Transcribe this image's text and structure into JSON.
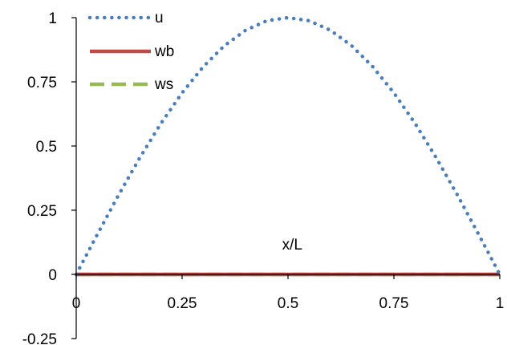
{
  "chart_data": {
    "type": "line",
    "xlabel": "x/L",
    "ylabel": "",
    "xlim": [
      0,
      1
    ],
    "ylim": [
      -0.25,
      1
    ],
    "x_ticks": [
      {
        "value": 0,
        "label": "0"
      },
      {
        "value": 0.25,
        "label": "0.25"
      },
      {
        "value": 0.5,
        "label": "0.5"
      },
      {
        "value": 0.75,
        "label": "0.75"
      },
      {
        "value": 1,
        "label": "1"
      }
    ],
    "y_ticks": [
      {
        "value": -0.25,
        "label": "-0.25"
      },
      {
        "value": 0,
        "label": "0"
      },
      {
        "value": 0.25,
        "label": "0.25"
      },
      {
        "value": 0.5,
        "label": "0.5"
      },
      {
        "value": 0.75,
        "label": "0.75"
      },
      {
        "value": 1,
        "label": "1"
      }
    ],
    "grid": false,
    "legend_position": "top-left",
    "series": [
      {
        "name": "u",
        "color": "#4a7ebb",
        "style": "dotted",
        "x": [
          0,
          0.05,
          0.1,
          0.15,
          0.2,
          0.25,
          0.3,
          0.35,
          0.4,
          0.45,
          0.5,
          0.55,
          0.6,
          0.65,
          0.7,
          0.75,
          0.8,
          0.85,
          0.9,
          0.95,
          1
        ],
        "y": [
          0,
          0.156,
          0.309,
          0.454,
          0.588,
          0.707,
          0.809,
          0.891,
          0.951,
          0.988,
          1,
          0.988,
          0.951,
          0.891,
          0.809,
          0.707,
          0.588,
          0.454,
          0.309,
          0.156,
          0
        ]
      },
      {
        "name": "wb",
        "color": "#be4b48",
        "style": "solid",
        "x": [
          0,
          1
        ],
        "y": [
          0,
          0
        ]
      },
      {
        "name": "ws",
        "color": "#98b954",
        "style": "dashed",
        "x": [
          0,
          1
        ],
        "y": [
          0,
          0
        ]
      }
    ]
  }
}
